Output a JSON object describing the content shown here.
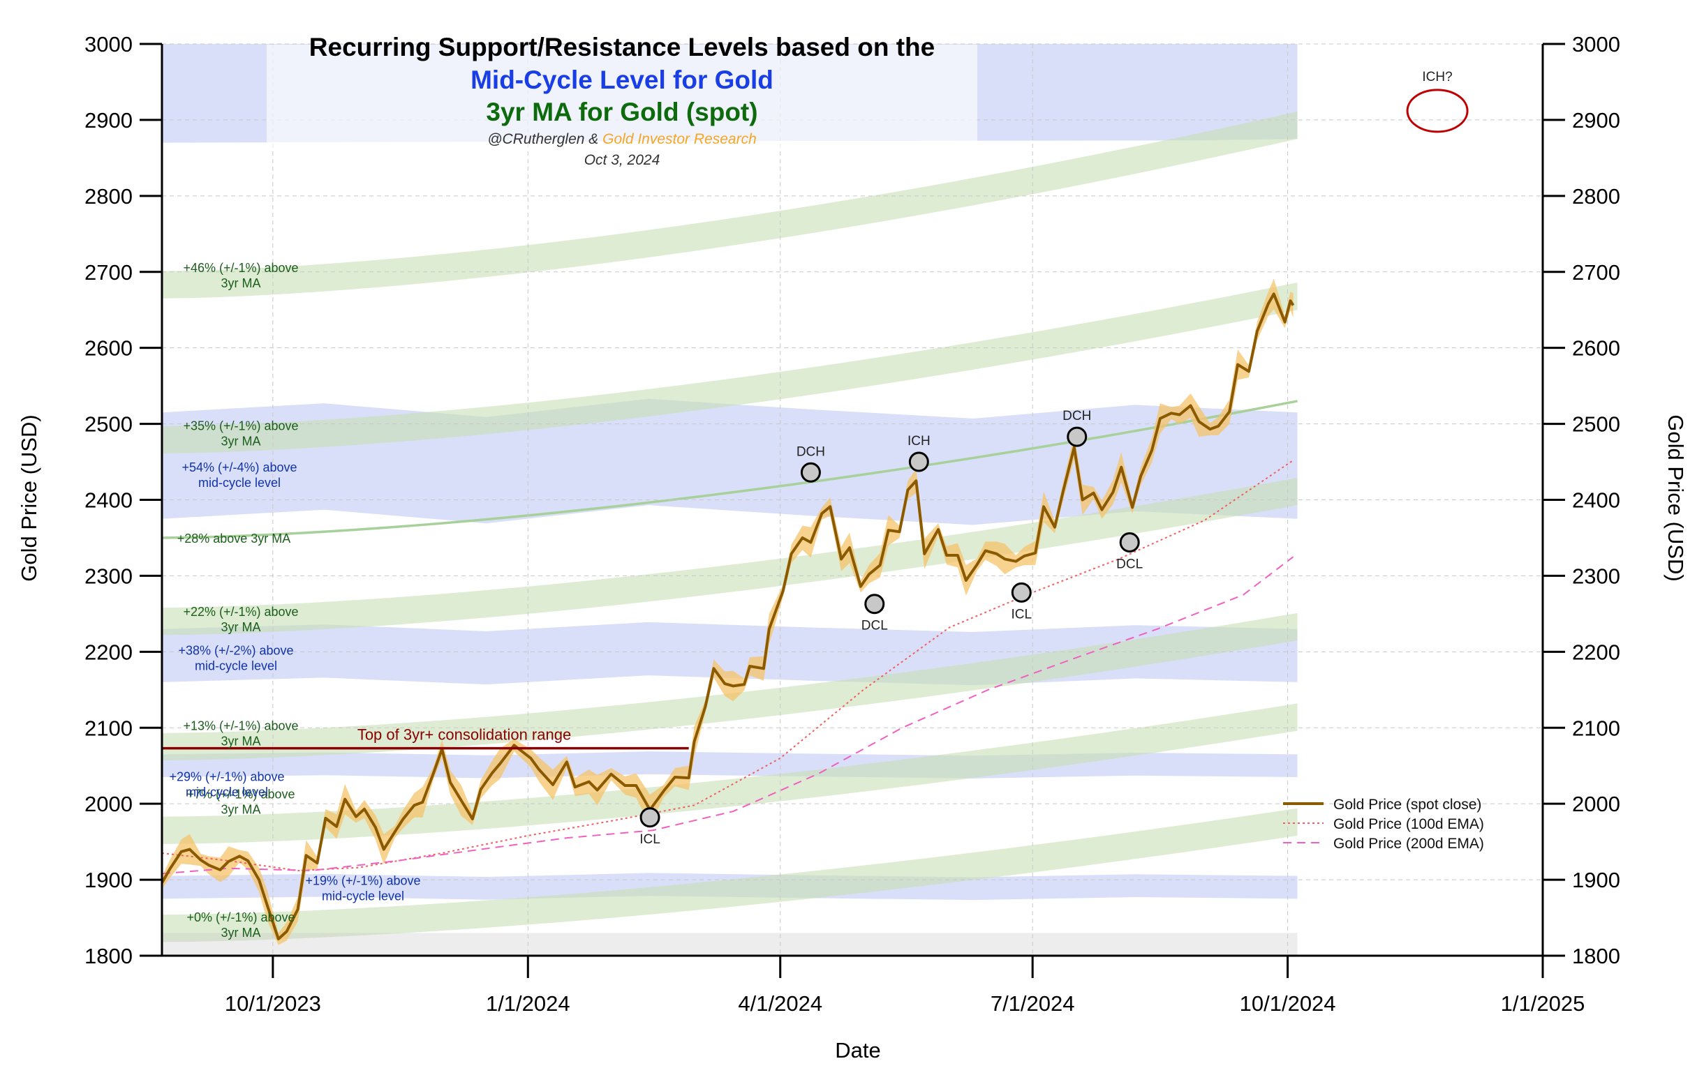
{
  "chart_data": {
    "type": "line",
    "title": "Recurring Support/Resistance Levels based on the",
    "subtitle_blue": "Mid-Cycle Level for Gold",
    "subtitle_green": "3yr MA for Gold (spot)",
    "credit_prefix": "@CRutherglen & ",
    "credit_suffix": "Gold Investor Research",
    "date_text": "Oct 3, 2024",
    "xlabel": "Date",
    "ylabel": "Gold Price (USD)",
    "ylabel_right": "Gold Price (USD)",
    "x_range": [
      "2023-08-22",
      "2025-01-01"
    ],
    "ylim": [
      1800,
      3000
    ],
    "x_ticks": [
      {
        "date": "2023-10-01",
        "label": "10/1/2023"
      },
      {
        "date": "2024-01-01",
        "label": "1/1/2024"
      },
      {
        "date": "2024-04-01",
        "label": "4/1/2024"
      },
      {
        "date": "2024-07-01",
        "label": "7/1/2024"
      },
      {
        "date": "2024-10-01",
        "label": "10/1/2024"
      },
      {
        "date": "2025-01-01",
        "label": "1/1/2025"
      }
    ],
    "y_ticks": [
      1800,
      1900,
      2000,
      2100,
      2200,
      2300,
      2400,
      2500,
      2600,
      2700,
      2800,
      2900,
      3000
    ],
    "grid": true,
    "legend_position": "lower-right",
    "colors": {
      "gold": "#8b5a00",
      "gold_band": "#f5c36a",
      "ema100": "#f06060",
      "ema200": "#f060c0",
      "green_band": "#c7e0b4",
      "blue_band": "#aab8f0",
      "green_line": "#a8d09a",
      "consolidation": "#8b0000",
      "ich_circle": "#c00000"
    },
    "series": [
      {
        "name": "Gold Price (spot close)",
        "style": "solid",
        "points": [
          [
            "2023-08-22",
            1896
          ],
          [
            "2023-08-25",
            1915
          ],
          [
            "2023-08-29",
            1937
          ],
          [
            "2023-09-01",
            1940
          ],
          [
            "2023-09-05",
            1926
          ],
          [
            "2023-09-08",
            1919
          ],
          [
            "2023-09-12",
            1913
          ],
          [
            "2023-09-15",
            1924
          ],
          [
            "2023-09-19",
            1931
          ],
          [
            "2023-09-22",
            1925
          ],
          [
            "2023-09-26",
            1900
          ],
          [
            "2023-09-29",
            1866
          ],
          [
            "2023-10-03",
            1822
          ],
          [
            "2023-10-06",
            1832
          ],
          [
            "2023-10-10",
            1861
          ],
          [
            "2023-10-13",
            1932
          ],
          [
            "2023-10-17",
            1922
          ],
          [
            "2023-10-20",
            1981
          ],
          [
            "2023-10-24",
            1970
          ],
          [
            "2023-10-27",
            2006
          ],
          [
            "2023-10-31",
            1983
          ],
          [
            "2023-11-03",
            1993
          ],
          [
            "2023-11-07",
            1969
          ],
          [
            "2023-11-10",
            1940
          ],
          [
            "2023-11-14",
            1963
          ],
          [
            "2023-11-17",
            1980
          ],
          [
            "2023-11-21",
            1998
          ],
          [
            "2023-11-24",
            2002
          ],
          [
            "2023-11-28",
            2041
          ],
          [
            "2023-12-01",
            2072
          ],
          [
            "2023-12-04",
            2028
          ],
          [
            "2023-12-08",
            2004
          ],
          [
            "2023-12-12",
            1980
          ],
          [
            "2023-12-15",
            2019
          ],
          [
            "2023-12-19",
            2040
          ],
          [
            "2023-12-22",
            2053
          ],
          [
            "2023-12-27",
            2077
          ],
          [
            "2024-01-02",
            2060
          ],
          [
            "2024-01-05",
            2045
          ],
          [
            "2024-01-10",
            2025
          ],
          [
            "2024-01-15",
            2055
          ],
          [
            "2024-01-18",
            2022
          ],
          [
            "2024-01-23",
            2029
          ],
          [
            "2024-01-26",
            2018
          ],
          [
            "2024-01-31",
            2039
          ],
          [
            "2024-02-05",
            2024
          ],
          [
            "2024-02-09",
            2024
          ],
          [
            "2024-02-14",
            1992
          ],
          [
            "2024-02-19",
            2017
          ],
          [
            "2024-02-23",
            2035
          ],
          [
            "2024-02-28",
            2034
          ],
          [
            "2024-03-01",
            2082
          ],
          [
            "2024-03-05",
            2128
          ],
          [
            "2024-03-08",
            2178
          ],
          [
            "2024-03-12",
            2158
          ],
          [
            "2024-03-15",
            2155
          ],
          [
            "2024-03-19",
            2157
          ],
          [
            "2024-03-21",
            2181
          ],
          [
            "2024-03-26",
            2178
          ],
          [
            "2024-03-28",
            2230
          ],
          [
            "2024-04-02",
            2280
          ],
          [
            "2024-04-05",
            2329
          ],
          [
            "2024-04-09",
            2350
          ],
          [
            "2024-04-12",
            2344
          ],
          [
            "2024-04-16",
            2382
          ],
          [
            "2024-04-19",
            2391
          ],
          [
            "2024-04-23",
            2322
          ],
          [
            "2024-04-26",
            2337
          ],
          [
            "2024-04-30",
            2286
          ],
          [
            "2024-05-03",
            2302
          ],
          [
            "2024-05-07",
            2314
          ],
          [
            "2024-05-10",
            2360
          ],
          [
            "2024-05-14",
            2358
          ],
          [
            "2024-05-17",
            2413
          ],
          [
            "2024-05-20",
            2425
          ],
          [
            "2024-05-23",
            2329
          ],
          [
            "2024-05-28",
            2361
          ],
          [
            "2024-05-31",
            2327
          ],
          [
            "2024-06-04",
            2327
          ],
          [
            "2024-06-07",
            2294
          ],
          [
            "2024-06-11",
            2315
          ],
          [
            "2024-06-14",
            2333
          ],
          [
            "2024-06-18",
            2329
          ],
          [
            "2024-06-21",
            2322
          ],
          [
            "2024-06-25",
            2319
          ],
          [
            "2024-06-28",
            2326
          ],
          [
            "2024-07-02",
            2330
          ],
          [
            "2024-07-05",
            2391
          ],
          [
            "2024-07-09",
            2364
          ],
          [
            "2024-07-12",
            2411
          ],
          [
            "2024-07-16",
            2469
          ],
          [
            "2024-07-19",
            2400
          ],
          [
            "2024-07-23",
            2409
          ],
          [
            "2024-07-26",
            2387
          ],
          [
            "2024-07-30",
            2410
          ],
          [
            "2024-08-02",
            2443
          ],
          [
            "2024-08-06",
            2390
          ],
          [
            "2024-08-09",
            2431
          ],
          [
            "2024-08-13",
            2465
          ],
          [
            "2024-08-16",
            2507
          ],
          [
            "2024-08-20",
            2514
          ],
          [
            "2024-08-23",
            2512
          ],
          [
            "2024-08-27",
            2524
          ],
          [
            "2024-08-30",
            2503
          ],
          [
            "2024-09-03",
            2493
          ],
          [
            "2024-09-06",
            2497
          ],
          [
            "2024-09-10",
            2516
          ],
          [
            "2024-09-13",
            2578
          ],
          [
            "2024-09-17",
            2569
          ],
          [
            "2024-09-20",
            2622
          ],
          [
            "2024-09-24",
            2658
          ],
          [
            "2024-09-26",
            2671
          ],
          [
            "2024-09-30",
            2634
          ],
          [
            "2024-10-02",
            2662
          ],
          [
            "2024-10-03",
            2656
          ]
        ]
      },
      {
        "name": "Gold Price (100d EMA)",
        "style": "dotted",
        "points": [
          [
            "2023-08-22",
            1935
          ],
          [
            "2023-09-15",
            1925
          ],
          [
            "2023-10-10",
            1912
          ],
          [
            "2023-11-01",
            1916
          ],
          [
            "2023-12-01",
            1935
          ],
          [
            "2024-01-01",
            1958
          ],
          [
            "2024-02-01",
            1978
          ],
          [
            "2024-03-01",
            1998
          ],
          [
            "2024-04-01",
            2060
          ],
          [
            "2024-05-01",
            2150
          ],
          [
            "2024-06-01",
            2232
          ],
          [
            "2024-07-01",
            2278
          ],
          [
            "2024-08-01",
            2322
          ],
          [
            "2024-09-01",
            2373
          ],
          [
            "2024-10-03",
            2452
          ]
        ]
      },
      {
        "name": "Gold Price (200d EMA)",
        "style": "dashed",
        "points": [
          [
            "2023-08-22",
            1908
          ],
          [
            "2023-09-15",
            1915
          ],
          [
            "2023-10-15",
            1912
          ],
          [
            "2023-11-15",
            1925
          ],
          [
            "2023-12-15",
            1940
          ],
          [
            "2024-01-15",
            1955
          ],
          [
            "2024-02-15",
            1965
          ],
          [
            "2024-03-15",
            1990
          ],
          [
            "2024-04-15",
            2040
          ],
          [
            "2024-05-15",
            2100
          ],
          [
            "2024-06-15",
            2150
          ],
          [
            "2024-07-15",
            2190
          ],
          [
            "2024-08-15",
            2230
          ],
          [
            "2024-09-15",
            2275
          ],
          [
            "2024-10-03",
            2325
          ]
        ]
      }
    ],
    "ma_bands": [
      {
        "label1": "+46% (+/-1%) above",
        "label2": "3yr MA",
        "center_start": 2683,
        "center_end": 2893,
        "half": 18
      },
      {
        "label1": "+35% (+/-1%) above",
        "label2": "3yr MA",
        "center_start": 2479,
        "center_end": 2668,
        "half": 18
      },
      {
        "label1": "+22% (+/-1%) above",
        "label2": "3yr MA",
        "center_start": 2240,
        "center_end": 2411,
        "half": 18
      },
      {
        "label1": "+13% (+/-1%) above",
        "label2": "3yr MA",
        "center_start": 2075,
        "center_end": 2233,
        "half": 18
      },
      {
        "label1": "+7% (+/-1%) above",
        "label2": "3yr MA",
        "center_start": 1965,
        "center_end": 2114,
        "half": 18
      },
      {
        "label1": "+0% (+/-1%) above",
        "label2": "3yr MA",
        "center_start": 1836,
        "center_end": 1976,
        "half": 18
      }
    ],
    "ma_line": {
      "label": "+28% above 3yr MA",
      "value_start": 2350,
      "value_end": 2530
    },
    "mid_cycle_bands": [
      {
        "label1": "+54% (+/-4%) above",
        "label2": "mid-cycle level",
        "center": 2445,
        "half": 70
      },
      {
        "label1": "+38% (+/-2%) above",
        "label2": "mid-cycle level",
        "center": 2195,
        "half": 35
      },
      {
        "label1": "+29% (+/-1%) above",
        "label2": "mid-cycle level",
        "center": 2050,
        "half": 15
      },
      {
        "label1": "+19% (+/-1%) above",
        "label2": "mid-cycle level",
        "center": 1890,
        "half": 15
      }
    ],
    "top_band": {
      "center": 2935,
      "half": 65
    },
    "consolidation": {
      "label": "Top of 3yr+ consolidation range",
      "value": 2073,
      "start": "2023-08-22",
      "end": "2024-02-28"
    },
    "cycle_points": [
      {
        "label": "ICL",
        "date": "2024-02-14",
        "value": 1982,
        "label_pos": "below"
      },
      {
        "label": "DCH",
        "date": "2024-04-12",
        "value": 2436,
        "label_pos": "above"
      },
      {
        "label": "DCL",
        "date": "2024-05-05",
        "value": 2263,
        "label_pos": "below"
      },
      {
        "label": "ICH",
        "date": "2024-05-21",
        "value": 2450,
        "label_pos": "above"
      },
      {
        "label": "ICL",
        "date": "2024-06-27",
        "value": 2278,
        "label_pos": "below"
      },
      {
        "label": "DCH",
        "date": "2024-07-17",
        "value": 2483,
        "label_pos": "above"
      },
      {
        "label": "DCL",
        "date": "2024-08-05",
        "value": 2344,
        "label_pos": "below"
      }
    ],
    "ich_projection": {
      "label": "ICH?",
      "date": "2024-11-24",
      "value": 2912
    }
  }
}
